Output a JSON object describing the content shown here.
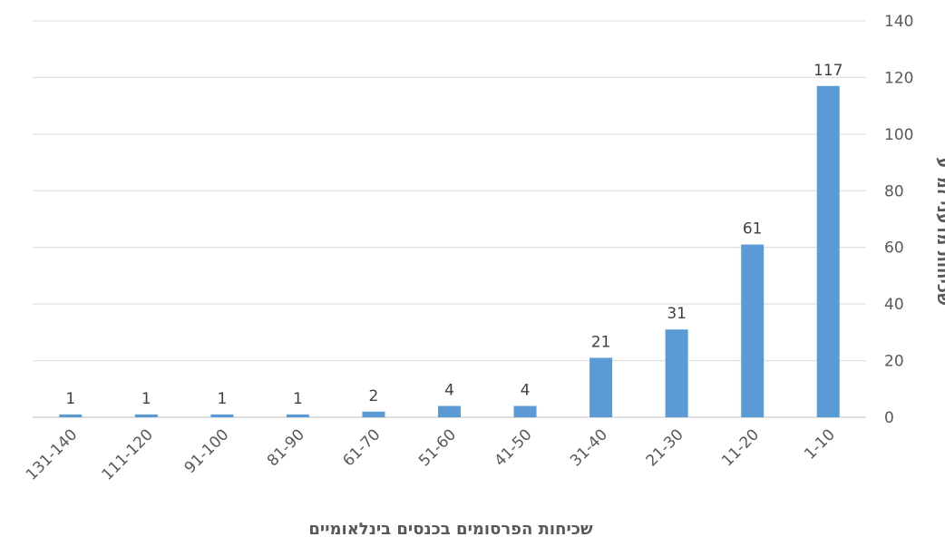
{
  "chart_data": {
    "type": "bar",
    "categories": [
      "131-140",
      "111-120",
      "91-100",
      "81-90",
      "61-70",
      "51-60",
      "41-50",
      "31-40",
      "21-30",
      "11-20",
      "1-10"
    ],
    "values": [
      1,
      1,
      1,
      1,
      2,
      4,
      4,
      21,
      31,
      61,
      117
    ],
    "xlabel": "שכיחות הפרסומים בכנסים בינלאומיים",
    "ylabel": "שכיחות מדעני זמ\"ע",
    "ylim": [
      0,
      140
    ],
    "yticks": [
      0,
      20,
      40,
      60,
      80,
      100,
      120,
      140
    ],
    "y_axis_side": "right",
    "grid": true,
    "data_labels": true,
    "colors": {
      "bar": "#5b9bd5",
      "grid": "#d9d9d9"
    }
  }
}
